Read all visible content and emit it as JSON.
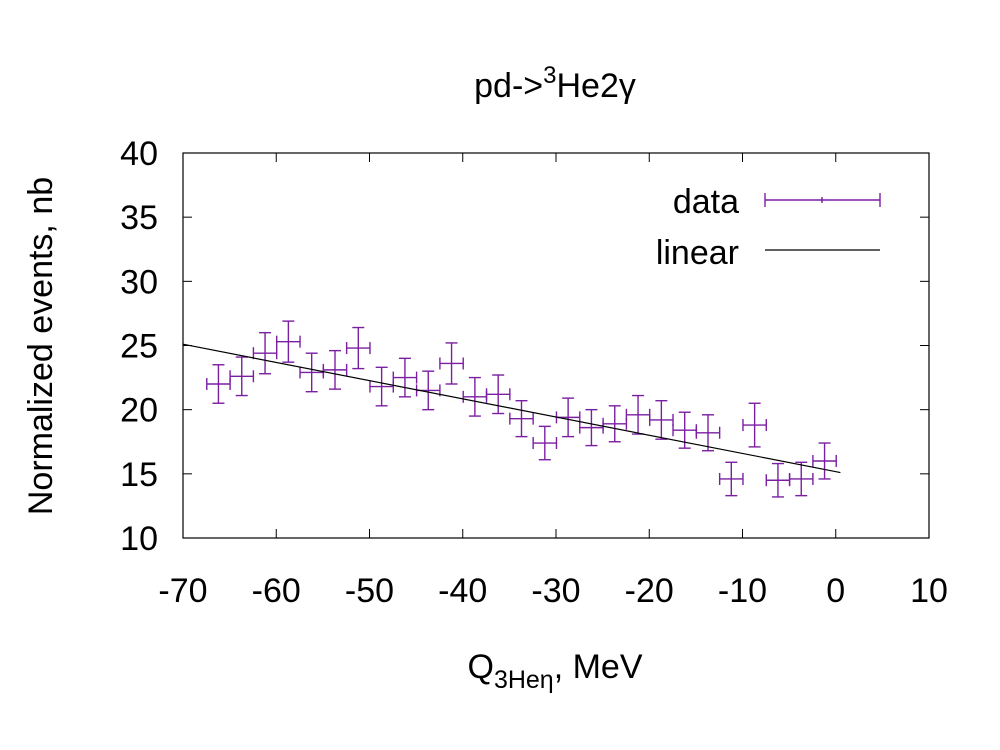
{
  "chart_data": {
    "type": "scatter",
    "title": "pd->",
    "title_sup": "3",
    "title_tail": "He2γ",
    "xlabel": "Q",
    "xlabel_sub": "3Heη",
    "xlabel_tail": ", MeV",
    "ylabel": "Normalized events, nb",
    "xlim": [
      -70,
      10
    ],
    "ylim": [
      10,
      40
    ],
    "xticks": [
      -70,
      -60,
      -50,
      -40,
      -30,
      -20,
      -10,
      0,
      10
    ],
    "yticks": [
      10,
      15,
      20,
      25,
      30,
      35,
      40
    ],
    "grid": false,
    "legend_position": "top-right",
    "colors": {
      "data": "#7b1fa2",
      "linear": "#000000"
    },
    "series": [
      {
        "name": "data",
        "style": "errorbars",
        "x": [
          -66.2,
          -63.7,
          -61.2,
          -58.7,
          -56.2,
          -53.7,
          -51.2,
          -48.7,
          -46.2,
          -43.7,
          -41.2,
          -38.7,
          -36.2,
          -33.7,
          -31.2,
          -28.7,
          -26.2,
          -23.7,
          -21.2,
          -18.7,
          -16.2,
          -13.7,
          -11.2,
          -8.7,
          -6.2,
          -3.7,
          -1.2
        ],
        "y": [
          22.0,
          22.6,
          24.4,
          25.3,
          22.9,
          23.1,
          24.8,
          21.8,
          22.5,
          21.5,
          23.6,
          21.0,
          21.2,
          19.3,
          17.4,
          19.4,
          18.6,
          18.9,
          19.6,
          19.2,
          18.4,
          18.2,
          14.6,
          18.8,
          14.5,
          14.6,
          16.0
        ],
        "xerr": 1.25,
        "yerr": [
          1.5,
          1.5,
          1.6,
          1.6,
          1.5,
          1.5,
          1.6,
          1.5,
          1.5,
          1.5,
          1.6,
          1.5,
          1.5,
          1.4,
          1.3,
          1.5,
          1.4,
          1.4,
          1.5,
          1.5,
          1.4,
          1.4,
          1.3,
          1.7,
          1.3,
          1.3,
          1.4
        ]
      },
      {
        "name": "linear",
        "style": "line",
        "x": [
          -70,
          0.5
        ],
        "y": [
          25.1,
          15.1
        ]
      }
    ]
  }
}
